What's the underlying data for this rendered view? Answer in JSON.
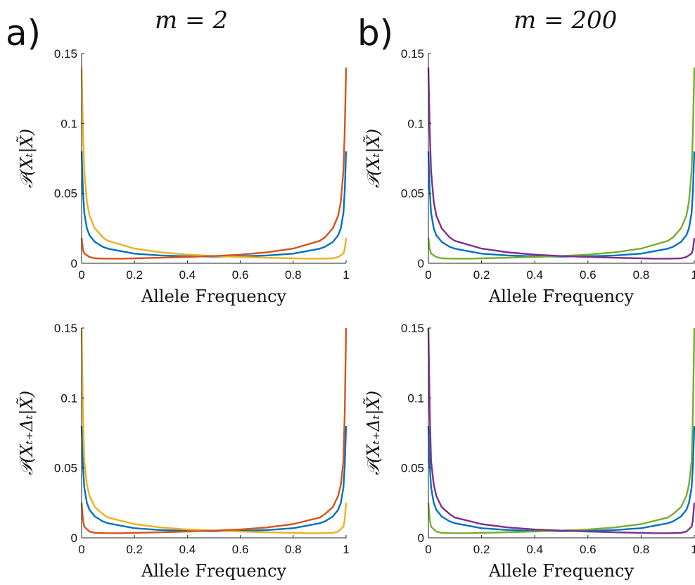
{
  "panels": [
    {
      "letter": "a)",
      "title": "m = 2"
    },
    {
      "letter": "b)",
      "title": "m = 200"
    }
  ],
  "colors": {
    "blue": "#0072BD",
    "orange": "#D95319",
    "yellow": "#EDB120",
    "purple": "#7E2F8E",
    "green": "#77AC30"
  },
  "chart_data": [
    {
      "type": "line",
      "xlabel": "Allele Frequency",
      "ylabel": "𝒫(Xₜ|X̃)",
      "xlim": [
        0,
        1
      ],
      "ylim": [
        0,
        0.15
      ],
      "xticks": [
        "0",
        "0.2",
        "0.4",
        "0.6",
        "0.8",
        "1"
      ],
      "yticks": [
        "0",
        "0.05",
        "0.1",
        "0.15"
      ],
      "series": [
        {
          "color": "#0072BD",
          "x": [
            0,
            0.005,
            0.01,
            0.02,
            0.03,
            0.05,
            0.08,
            0.1,
            0.2,
            0.3,
            0.4,
            0.5,
            0.6,
            0.7,
            0.8,
            0.9,
            0.92,
            0.95,
            0.97,
            0.98,
            0.99,
            0.995,
            1
          ],
          "y": [
            0.08,
            0.052,
            0.036,
            0.025,
            0.02,
            0.0153,
            0.0118,
            0.0104,
            0.0069,
            0.0056,
            0.005,
            0.0048,
            0.005,
            0.0056,
            0.0069,
            0.0104,
            0.0118,
            0.0153,
            0.02,
            0.025,
            0.036,
            0.052,
            0.08
          ]
        },
        {
          "color": "#EDB120",
          "x": [
            0,
            0.005,
            0.01,
            0.02,
            0.03,
            0.05,
            0.08,
            0.1,
            0.2,
            0.3,
            0.4,
            0.5,
            0.6,
            0.7,
            0.8,
            0.85,
            0.9,
            0.95,
            0.97,
            0.99,
            0.995,
            1
          ],
          "y": [
            0.14,
            0.095,
            0.066,
            0.044,
            0.034,
            0.025,
            0.0185,
            0.016,
            0.0105,
            0.0078,
            0.0062,
            0.0052,
            0.0045,
            0.004,
            0.0035,
            0.0033,
            0.0033,
            0.0035,
            0.0045,
            0.007,
            0.01,
            0.018
          ]
        },
        {
          "color": "#D95319",
          "x": [
            0,
            0.005,
            0.01,
            0.03,
            0.05,
            0.1,
            0.15,
            0.2,
            0.3,
            0.4,
            0.5,
            0.6,
            0.7,
            0.8,
            0.9,
            0.92,
            0.95,
            0.97,
            0.98,
            0.99,
            0.995,
            1
          ],
          "y": [
            0.018,
            0.01,
            0.007,
            0.0045,
            0.0035,
            0.0033,
            0.0033,
            0.0035,
            0.004,
            0.0045,
            0.0052,
            0.0062,
            0.0078,
            0.0105,
            0.016,
            0.0185,
            0.025,
            0.034,
            0.044,
            0.066,
            0.095,
            0.14
          ]
        }
      ]
    },
    {
      "type": "line",
      "xlabel": "Allele Frequency",
      "ylabel": "𝒫(Xₜ|X̃)",
      "xlim": [
        0,
        1
      ],
      "ylim": [
        0,
        0.15
      ],
      "xticks": [
        "0",
        "0.2",
        "0.4",
        "0.6",
        "0.8",
        "1"
      ],
      "yticks": [
        "0",
        "0.05",
        "0.1",
        "0.15"
      ],
      "series": [
        {
          "color": "#0072BD",
          "x": [
            0,
            0.005,
            0.01,
            0.02,
            0.03,
            0.05,
            0.08,
            0.1,
            0.2,
            0.3,
            0.4,
            0.5,
            0.6,
            0.7,
            0.8,
            0.9,
            0.92,
            0.95,
            0.97,
            0.98,
            0.99,
            0.995,
            1
          ],
          "y": [
            0.08,
            0.052,
            0.036,
            0.025,
            0.02,
            0.0153,
            0.0118,
            0.0104,
            0.0069,
            0.0056,
            0.005,
            0.0048,
            0.005,
            0.0056,
            0.0069,
            0.0104,
            0.0118,
            0.0153,
            0.02,
            0.025,
            0.036,
            0.052,
            0.08
          ]
        },
        {
          "color": "#77AC30",
          "x": [
            0,
            0.005,
            0.01,
            0.03,
            0.05,
            0.1,
            0.15,
            0.2,
            0.3,
            0.4,
            0.5,
            0.6,
            0.7,
            0.8,
            0.9,
            0.92,
            0.95,
            0.97,
            0.98,
            0.99,
            0.995,
            1
          ],
          "y": [
            0.018,
            0.01,
            0.007,
            0.0045,
            0.0035,
            0.0033,
            0.0033,
            0.0035,
            0.004,
            0.0045,
            0.0052,
            0.0062,
            0.0078,
            0.0105,
            0.016,
            0.0185,
            0.025,
            0.034,
            0.044,
            0.066,
            0.095,
            0.14
          ]
        },
        {
          "color": "#7E2F8E",
          "x": [
            0,
            0.005,
            0.01,
            0.02,
            0.03,
            0.05,
            0.08,
            0.1,
            0.2,
            0.3,
            0.4,
            0.5,
            0.6,
            0.7,
            0.8,
            0.85,
            0.9,
            0.95,
            0.97,
            0.99,
            0.995,
            1
          ],
          "y": [
            0.14,
            0.095,
            0.066,
            0.044,
            0.034,
            0.025,
            0.0185,
            0.016,
            0.0105,
            0.0078,
            0.0062,
            0.0052,
            0.0045,
            0.004,
            0.0035,
            0.0033,
            0.0033,
            0.0035,
            0.0045,
            0.007,
            0.01,
            0.018
          ]
        }
      ]
    },
    {
      "type": "line",
      "xlabel": "Allele Frequency",
      "ylabel": "𝒫(Xₜ₊Δₜ|X̃)",
      "xlim": [
        0,
        1
      ],
      "ylim": [
        0,
        0.15
      ],
      "xticks": [
        "0",
        "0.2",
        "0.4",
        "0.6",
        "0.8",
        "1"
      ],
      "yticks": [
        "0",
        "0.05",
        "0.1",
        "0.15"
      ],
      "series": [
        {
          "color": "#0072BD",
          "x": [
            0,
            0.005,
            0.01,
            0.02,
            0.03,
            0.05,
            0.08,
            0.1,
            0.2,
            0.3,
            0.4,
            0.5,
            0.6,
            0.7,
            0.8,
            0.9,
            0.92,
            0.95,
            0.97,
            0.98,
            0.99,
            0.995,
            1
          ],
          "y": [
            0.08,
            0.052,
            0.036,
            0.025,
            0.02,
            0.0153,
            0.0118,
            0.0104,
            0.0069,
            0.0056,
            0.005,
            0.0048,
            0.005,
            0.0056,
            0.0069,
            0.0104,
            0.0118,
            0.0153,
            0.02,
            0.025,
            0.036,
            0.052,
            0.08
          ]
        },
        {
          "color": "#EDB120",
          "x": [
            0,
            0.005,
            0.01,
            0.02,
            0.03,
            0.05,
            0.08,
            0.1,
            0.2,
            0.3,
            0.4,
            0.5,
            0.6,
            0.7,
            0.8,
            0.85,
            0.9,
            0.95,
            0.97,
            0.99,
            0.995,
            1
          ],
          "y": [
            0.15,
            0.09,
            0.055,
            0.038,
            0.03,
            0.022,
            0.017,
            0.0145,
            0.0098,
            0.0074,
            0.006,
            0.0052,
            0.0045,
            0.004,
            0.0035,
            0.0033,
            0.0033,
            0.0035,
            0.0045,
            0.008,
            0.013,
            0.025
          ]
        },
        {
          "color": "#D95319",
          "x": [
            0,
            0.005,
            0.01,
            0.03,
            0.05,
            0.1,
            0.15,
            0.2,
            0.3,
            0.4,
            0.5,
            0.6,
            0.7,
            0.8,
            0.9,
            0.92,
            0.95,
            0.97,
            0.98,
            0.99,
            0.995,
            1
          ],
          "y": [
            0.025,
            0.013,
            0.008,
            0.0045,
            0.0035,
            0.0033,
            0.0033,
            0.0035,
            0.004,
            0.0045,
            0.0052,
            0.006,
            0.0074,
            0.0098,
            0.0145,
            0.017,
            0.022,
            0.03,
            0.038,
            0.055,
            0.09,
            0.15
          ]
        }
      ]
    },
    {
      "type": "line",
      "xlabel": "Allele Frequency",
      "ylabel": "𝒫(Xₜ₊Δₜ|X̃)",
      "xlim": [
        0,
        1
      ],
      "ylim": [
        0,
        0.15
      ],
      "xticks": [
        "0",
        "0.2",
        "0.4",
        "0.6",
        "0.8",
        "1"
      ],
      "yticks": [
        "0",
        "0.05",
        "0.1",
        "0.15"
      ],
      "series": [
        {
          "color": "#0072BD",
          "x": [
            0,
            0.005,
            0.01,
            0.02,
            0.03,
            0.05,
            0.08,
            0.1,
            0.2,
            0.3,
            0.4,
            0.5,
            0.6,
            0.7,
            0.8,
            0.9,
            0.92,
            0.95,
            0.97,
            0.98,
            0.99,
            0.995,
            1
          ],
          "y": [
            0.08,
            0.052,
            0.036,
            0.025,
            0.02,
            0.0153,
            0.0118,
            0.0104,
            0.0069,
            0.0056,
            0.005,
            0.0048,
            0.005,
            0.0056,
            0.0069,
            0.0104,
            0.0118,
            0.0153,
            0.02,
            0.025,
            0.036,
            0.052,
            0.08
          ]
        },
        {
          "color": "#77AC30",
          "x": [
            0,
            0.005,
            0.01,
            0.03,
            0.05,
            0.1,
            0.15,
            0.2,
            0.3,
            0.4,
            0.5,
            0.6,
            0.7,
            0.8,
            0.9,
            0.92,
            0.95,
            0.97,
            0.98,
            0.99,
            0.995,
            1
          ],
          "y": [
            0.025,
            0.013,
            0.008,
            0.0045,
            0.0035,
            0.0033,
            0.0033,
            0.0035,
            0.004,
            0.0045,
            0.0052,
            0.006,
            0.0074,
            0.0098,
            0.0145,
            0.017,
            0.022,
            0.03,
            0.038,
            0.055,
            0.09,
            0.15
          ]
        },
        {
          "color": "#7E2F8E",
          "x": [
            0,
            0.005,
            0.01,
            0.02,
            0.03,
            0.05,
            0.08,
            0.1,
            0.2,
            0.3,
            0.4,
            0.5,
            0.6,
            0.7,
            0.8,
            0.85,
            0.9,
            0.95,
            0.97,
            0.99,
            0.995,
            1
          ],
          "y": [
            0.15,
            0.09,
            0.055,
            0.038,
            0.03,
            0.022,
            0.017,
            0.0145,
            0.0098,
            0.0074,
            0.006,
            0.0052,
            0.0045,
            0.004,
            0.0035,
            0.0033,
            0.0033,
            0.0035,
            0.0045,
            0.008,
            0.013,
            0.025
          ]
        }
      ]
    }
  ]
}
